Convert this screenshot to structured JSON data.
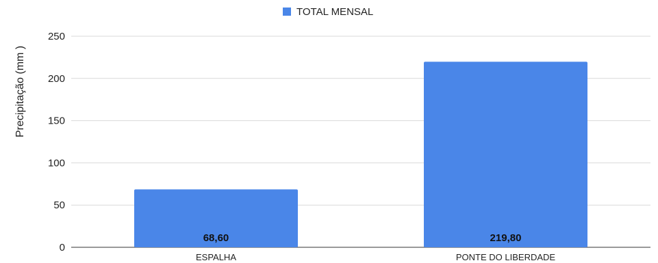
{
  "chart_data": {
    "type": "bar",
    "categories": [
      "ESPALHA",
      "PONTE DO LIBERDADE"
    ],
    "series": [
      {
        "name": "TOTAL MENSAL",
        "values": [
          68.6,
          219.8
        ],
        "color": "#4a86e8"
      }
    ],
    "data_labels": [
      "68,60",
      "219,80"
    ],
    "title": "",
    "xlabel": "",
    "ylabel": "Precipitação (mm )",
    "ylim": [
      0,
      250
    ],
    "yticks": [
      0,
      50,
      100,
      150,
      200,
      250
    ],
    "grid": true,
    "legend": "top-center"
  }
}
